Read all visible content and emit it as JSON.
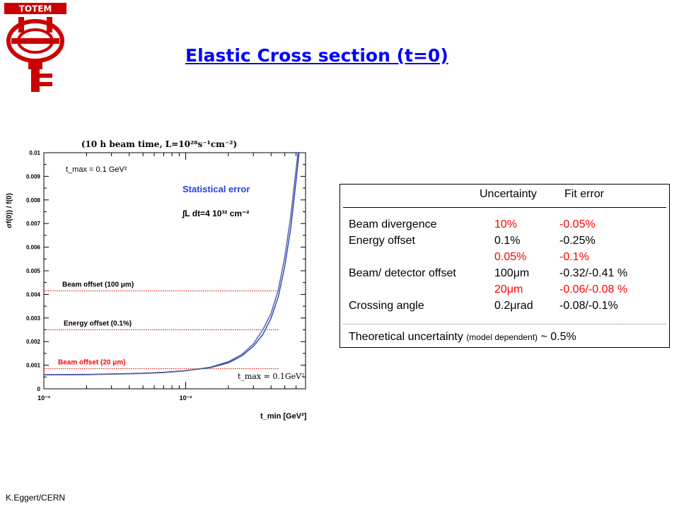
{
  "logo": {
    "text": "TOTEM"
  },
  "title": "Elastic Cross section (t=0)",
  "footer": "K.Eggert/CERN",
  "chart_data": {
    "type": "line",
    "header": "(10 h beam time, L=10²⁸s⁻¹cm⁻²)",
    "ylabel": "σf(0)) / f(0)",
    "xlabel": "t_min [GeV²]",
    "xscale": "log",
    "xlim": [
      0.001,
      0.07
    ],
    "ylim": [
      0,
      0.01
    ],
    "xticks": [
      {
        "value": 0.001,
        "label": "10⁻³"
      },
      {
        "value": 0.01,
        "label": "10⁻²"
      }
    ],
    "yticks": [
      "0",
      "0.001",
      "0.002",
      "0.003",
      "0.004",
      "0.005",
      "0.006",
      "0.007",
      "0.008",
      "0.009",
      "0.01"
    ],
    "series": [
      {
        "name": "",
        "color": "#1e3fd6",
        "x": [
          0.001,
          0.002,
          0.003,
          0.005,
          0.007,
          0.01,
          0.015,
          0.02,
          0.025,
          0.03,
          0.035,
          0.04,
          0.045,
          0.05,
          0.055,
          0.06,
          0.063
        ],
        "y": [
          0.0006,
          0.00061,
          0.00063,
          0.00066,
          0.0007,
          0.00077,
          0.0009,
          0.0011,
          0.0014,
          0.0018,
          0.0023,
          0.003,
          0.0039,
          0.0052,
          0.0068,
          0.0088,
          0.0101
        ]
      },
      {
        "name": "",
        "color": "#5a5a8a",
        "x": [
          0.001,
          0.002,
          0.003,
          0.005,
          0.007,
          0.01,
          0.015,
          0.02,
          0.025,
          0.03,
          0.035,
          0.04,
          0.045,
          0.05,
          0.055,
          0.06,
          0.062
        ],
        "y": [
          0.00059,
          0.0006,
          0.00062,
          0.00065,
          0.00069,
          0.00076,
          0.00092,
          0.00115,
          0.00146,
          0.0019,
          0.0025,
          0.0032,
          0.0042,
          0.0056,
          0.0073,
          0.0093,
          0.0101
        ]
      }
    ],
    "reference_lines": [
      {
        "label": "Beam offset (100 μm)",
        "y": 0.00415,
        "color": "#cc0000",
        "label_color": "#000000"
      },
      {
        "label": "Energy offset (0.1%)",
        "y": 0.0025,
        "color": "#cc0000",
        "label_color": "#000000"
      },
      {
        "label": "Beam offset (20 μm)",
        "y": 0.00085,
        "color": "#cc0000",
        "label_color": "#ff0000"
      }
    ],
    "annotations": {
      "tmax_top": "t_max = 0.1 GeV²",
      "stat_error": "Statistical error",
      "luminosity": "∫L dt=4 10³² cm⁻²",
      "tmax_bottom": "t_max = 0.1GeV²"
    }
  },
  "table": {
    "header_uncertainty": "Uncertainty",
    "header_fit": "Fit error",
    "rows": [
      {
        "label": "Beam divergence",
        "unc": "10%",
        "fit": "-0.05%",
        "color": "#ff0000"
      },
      {
        "label": "Energy offset",
        "unc": "0.1%",
        "fit": "-0.25%",
        "color": "#000000"
      },
      {
        "label": "",
        "unc": "0.05%",
        "fit": "-0.1%",
        "color": "#ff0000"
      },
      {
        "label": "Beam/ detector offset",
        "unc": "100μm",
        "fit": "-0.32/-0.41 %",
        "color": "#000000"
      },
      {
        "label": "",
        "unc": "20μm",
        "fit": "-0.06/-0.08 %",
        "color": "#ff0000"
      },
      {
        "label": "Crossing angle",
        "unc": "0.2μrad",
        "fit": "-0.08/-0.1%",
        "color": "#000000"
      }
    ],
    "theory_label": "Theoretical uncertainty",
    "theory_note": "(model dependent)",
    "theory_value": "~ 0.5%"
  }
}
